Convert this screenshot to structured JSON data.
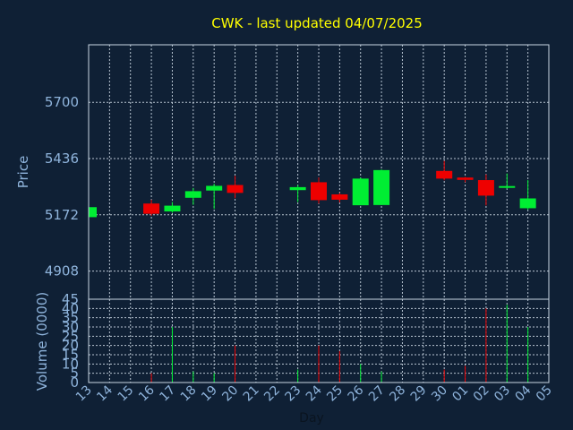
{
  "chart_data": {
    "type": "candlestick",
    "title": "CWK - last updated 04/07/2025",
    "price_panel": {
      "ylabel": "Price",
      "yticks": [
        4908,
        5172,
        5436,
        5700
      ],
      "ylim": [
        4776,
        5970
      ],
      "grid": true
    },
    "volume_panel": {
      "ylabel": "Volume (0000)",
      "yticks": [
        0,
        5,
        10,
        15,
        20,
        25,
        30,
        35,
        40,
        45
      ],
      "ylim": [
        0,
        45
      ],
      "grid": true
    },
    "xlabel": "Day",
    "days": [
      "13",
      "14",
      "15",
      "16",
      "17",
      "18",
      "19",
      "20",
      "21",
      "22",
      "23",
      "24",
      "25",
      "26",
      "27",
      "28",
      "29",
      "30",
      "01",
      "02",
      "03",
      "04",
      "05"
    ],
    "colors": {
      "up": "#00ee33",
      "down": "#ee0000"
    },
    "candles": [
      {
        "day": "13",
        "open": 5161,
        "high": 5208,
        "low": 5161,
        "close": 5208,
        "volume": 0
      },
      {
        "day": "16",
        "open": 5225,
        "high": 5243,
        "low": 5168,
        "close": 5177,
        "volume": 5
      },
      {
        "day": "17",
        "open": 5188,
        "high": 5232,
        "low": 5182,
        "close": 5215,
        "volume": 30
      },
      {
        "day": "18",
        "open": 5252,
        "high": 5298,
        "low": 5219,
        "close": 5283,
        "volume": 6
      },
      {
        "day": "19",
        "open": 5286,
        "high": 5318,
        "low": 5200,
        "close": 5308,
        "volume": 5
      },
      {
        "day": "20",
        "open": 5312,
        "high": 5355,
        "low": 5250,
        "close": 5275,
        "volume": 20
      },
      {
        "day": "23",
        "open": 5288,
        "high": 5312,
        "low": 5232,
        "close": 5302,
        "volume": 7
      },
      {
        "day": "24",
        "open": 5325,
        "high": 5347,
        "low": 5225,
        "close": 5241,
        "volume": 20
      },
      {
        "day": "25",
        "open": 5268,
        "high": 5275,
        "low": 5230,
        "close": 5243,
        "volume": 17
      },
      {
        "day": "26",
        "open": 5217,
        "high": 5347,
        "low": 5217,
        "close": 5342,
        "volume": 10
      },
      {
        "day": "27",
        "open": 5218,
        "high": 5385,
        "low": 5218,
        "close": 5382,
        "volume": 6
      },
      {
        "day": "30",
        "open": 5378,
        "high": 5425,
        "low": 5334,
        "close": 5342,
        "volume": 7
      },
      {
        "day": "01",
        "open": 5347,
        "high": 5350,
        "low": 5325,
        "close": 5336,
        "volume": 9
      },
      {
        "day": "02",
        "open": 5335,
        "high": 5362,
        "low": 5216,
        "close": 5262,
        "volume": 40
      },
      {
        "day": "03",
        "open": 5300,
        "high": 5366,
        "low": 5294,
        "close": 5307,
        "volume": 42
      },
      {
        "day": "04",
        "open": 5203,
        "high": 5335,
        "low": 5196,
        "close": 5249,
        "volume": 30
      }
    ]
  }
}
